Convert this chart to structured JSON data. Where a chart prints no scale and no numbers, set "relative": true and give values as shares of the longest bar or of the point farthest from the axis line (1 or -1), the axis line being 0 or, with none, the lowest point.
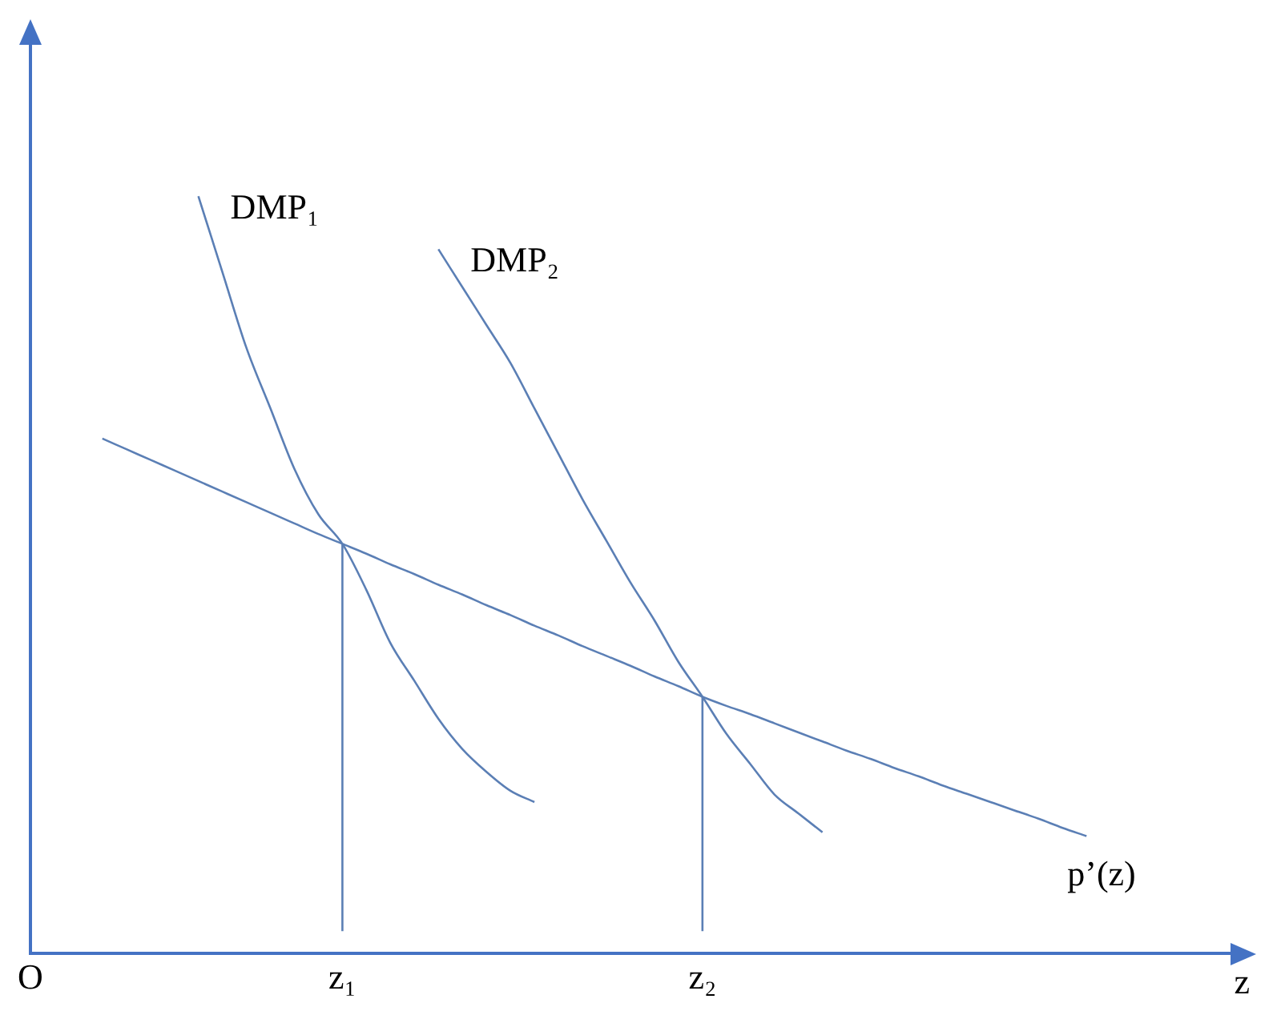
{
  "chart_data": {
    "type": "line",
    "relative": true,
    "xlabel": "z",
    "tick_labels": "x",
    "grid": false,
    "legend": false,
    "marker": "none",
    "line_style": "solid",
    "categories": [
      "O",
      null,
      null,
      null,
      null,
      null,
      null,
      null,
      null,
      null,
      null,
      null,
      null,
      "z₁",
      null,
      null,
      null,
      null,
      null,
      null,
      null,
      null,
      null,
      null,
      null,
      null,
      null,
      null,
      "z₂",
      null,
      null,
      null,
      null,
      null,
      null,
      null,
      null,
      null,
      null,
      null,
      null,
      null,
      null,
      null,
      null,
      null,
      null,
      null,
      null,
      null,
      null
    ],
    "series": [
      {
        "name": "DMP₁",
        "color": "#5b7fb5",
        "values": [
          null,
          null,
          null,
          null,
          null,
          null,
          null,
          1.0,
          0.9,
          0.8,
          0.72,
          0.64,
          0.58,
          0.541,
          0.48,
          0.41,
          0.36,
          0.31,
          0.27,
          0.24,
          0.215,
          0.2,
          null,
          null,
          null,
          null,
          null,
          null,
          null,
          null,
          null,
          null,
          null,
          null,
          null,
          null,
          null,
          null,
          null,
          null,
          null,
          null,
          null,
          null,
          null,
          null,
          null,
          null,
          null,
          null,
          null
        ]
      },
      {
        "name": "DMP₂",
        "color": "#5b7fb5",
        "values": [
          null,
          null,
          null,
          null,
          null,
          null,
          null,
          null,
          null,
          null,
          null,
          null,
          null,
          null,
          null,
          null,
          null,
          0.93,
          0.88,
          0.83,
          0.78,
          0.72,
          0.66,
          0.6,
          0.545,
          0.49,
          0.44,
          0.385,
          0.339,
          0.29,
          0.25,
          0.21,
          0.185,
          0.16,
          null,
          null,
          null,
          null,
          null,
          null,
          null,
          null,
          null,
          null,
          null,
          null,
          null,
          null,
          null,
          null,
          null
        ]
      },
      {
        "name": "p’(z)",
        "color": "#5b7fb5",
        "values": [
          null,
          null,
          null,
          0.68,
          0.666,
          0.652,
          0.638,
          0.624,
          0.61,
          0.596,
          0.582,
          0.568,
          0.554,
          0.541,
          0.528,
          0.514,
          0.501,
          0.487,
          0.474,
          0.46,
          0.447,
          0.433,
          0.42,
          0.406,
          0.393,
          0.38,
          0.366,
          0.353,
          0.339,
          0.327,
          0.316,
          0.304,
          0.292,
          0.28,
          0.268,
          0.257,
          0.245,
          0.234,
          0.222,
          0.211,
          0.2,
          0.189,
          0.178,
          0.166,
          0.155,
          null,
          null,
          null,
          null,
          null,
          null
        ]
      }
    ],
    "ref_lines": [
      {
        "axis": "x",
        "value": "z₁",
        "color": "#5b7fb5"
      },
      {
        "axis": "x",
        "value": "z₂",
        "color": "#5b7fb5"
      }
    ]
  }
}
